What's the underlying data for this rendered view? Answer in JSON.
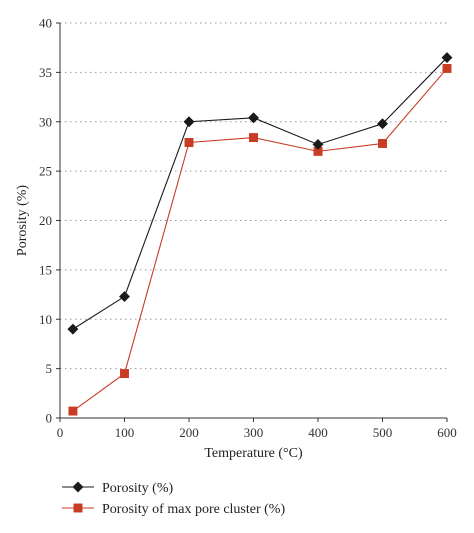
{
  "chart_data": {
    "type": "line",
    "title": "",
    "xlabel": "Temperature (°C)",
    "ylabel": "Porosity (%)",
    "xlim": [
      0,
      600
    ],
    "ylim": [
      0,
      40
    ],
    "x_ticks": [
      0,
      100,
      200,
      300,
      400,
      500,
      600
    ],
    "y_ticks": [
      0,
      5,
      10,
      15,
      20,
      25,
      30,
      35,
      40
    ],
    "grid": "horizontal dotted",
    "legend_placement": "bottom-left",
    "series": [
      {
        "name": "Porosity (%)",
        "marker": "diamond",
        "color": "#1a1a1a",
        "x": [
          20,
          100,
          200,
          300,
          400,
          500,
          600
        ],
        "values": [
          9.0,
          12.3,
          30.0,
          30.4,
          27.7,
          29.8,
          36.5
        ]
      },
      {
        "name": "Porosity of max pore cluster (%)",
        "marker": "square",
        "color": "#c83c23",
        "x": [
          20,
          100,
          200,
          300,
          400,
          500,
          600
        ],
        "values": [
          0.7,
          4.5,
          27.9,
          28.4,
          27.0,
          27.8,
          35.4
        ]
      }
    ]
  }
}
